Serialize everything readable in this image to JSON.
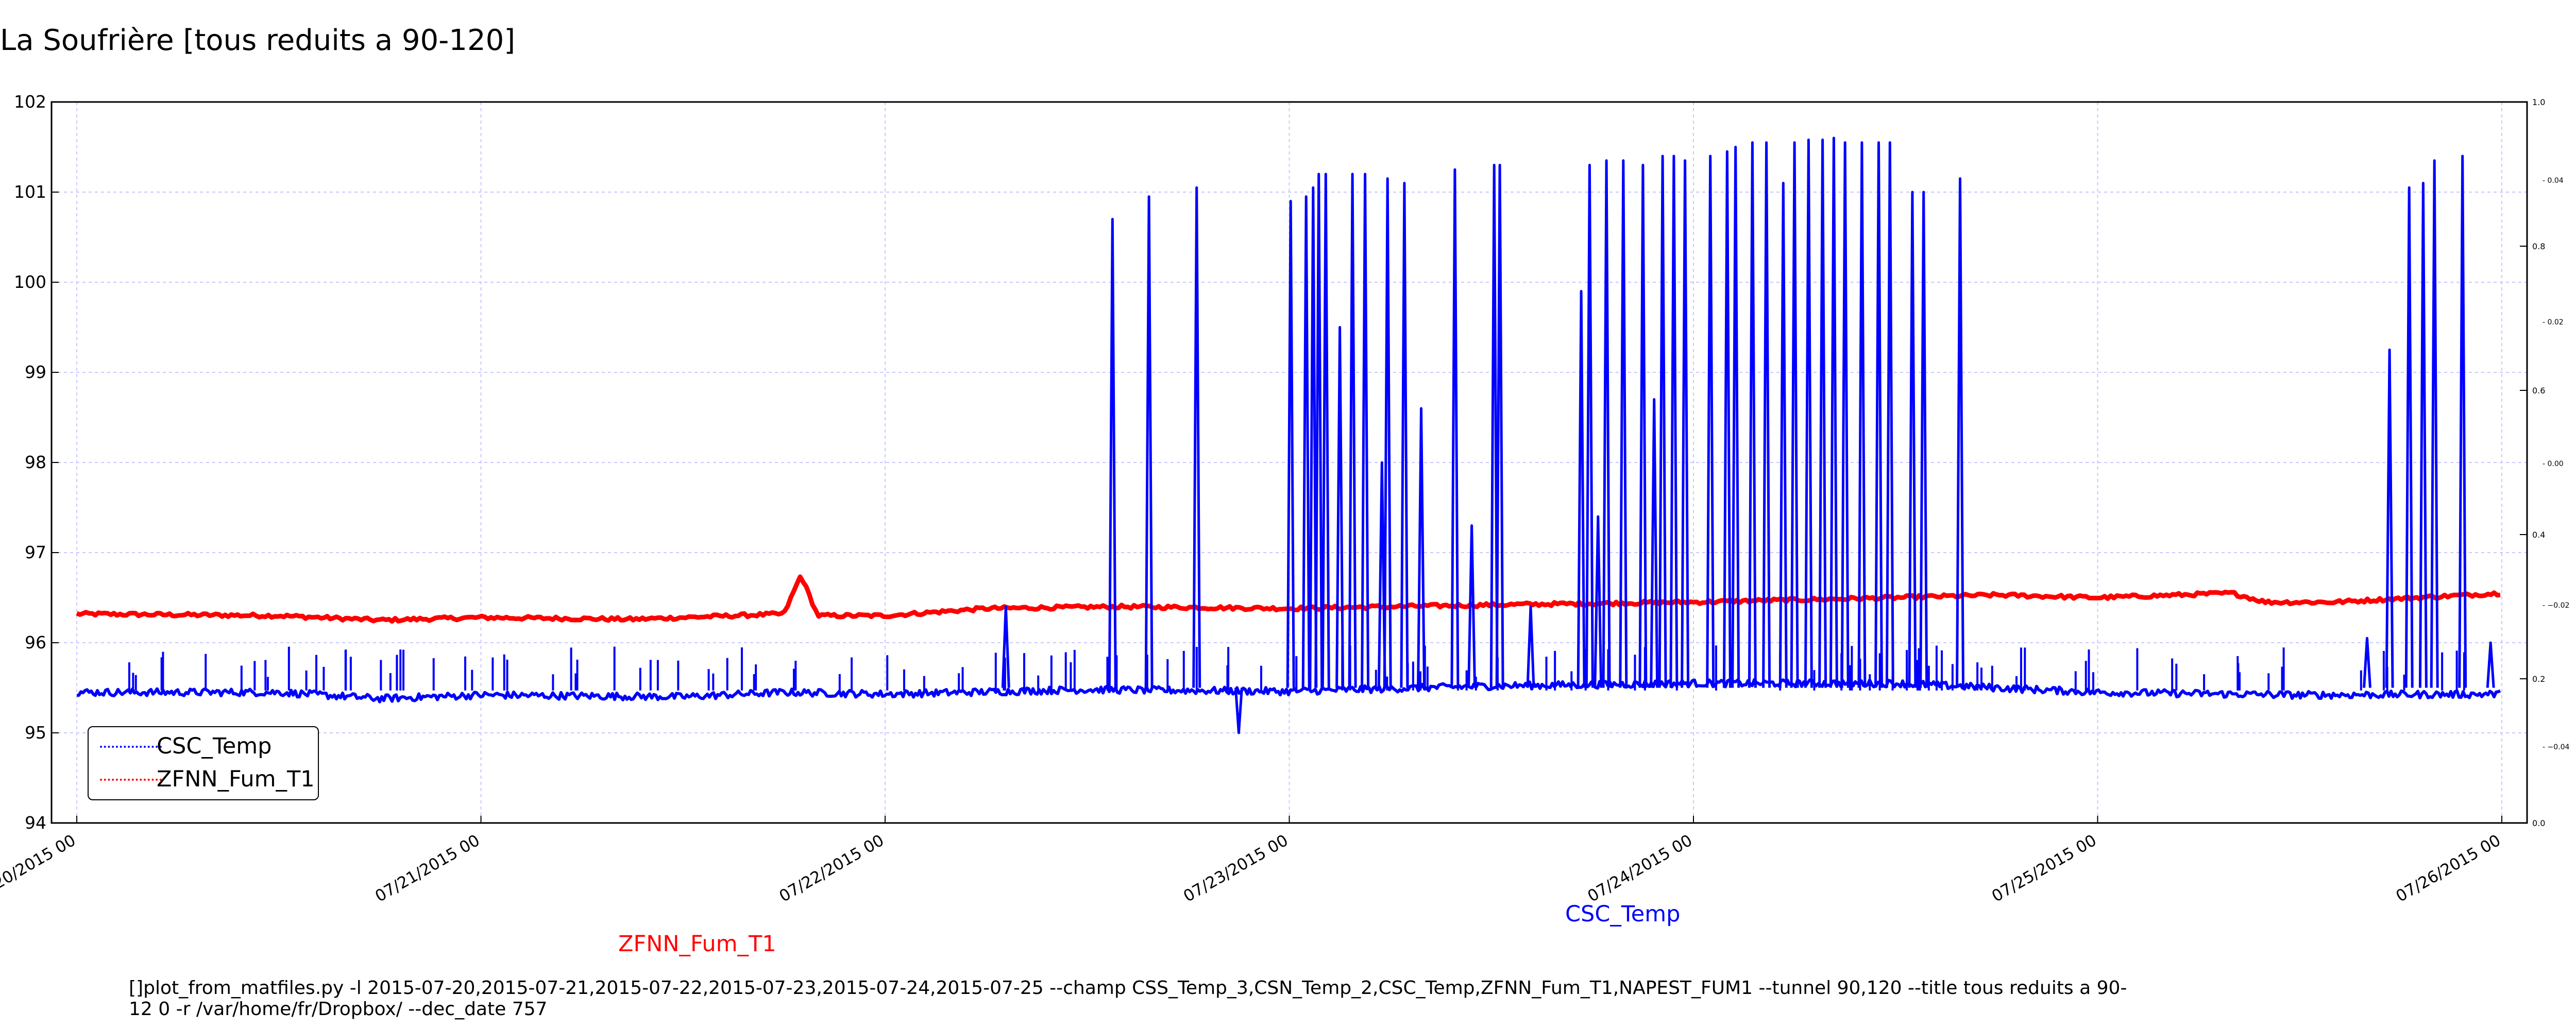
{
  "title": "La Soufrière [tous reduits a 90-120]",
  "colors": {
    "csc": "#0000ff",
    "zfnn": "#ff0000",
    "grid": "#c8c8ff",
    "frame": "#000000"
  },
  "labels": {
    "zfnn": "ZFNN_Fum_T1",
    "csc": "CSC_Temp"
  },
  "footer": "[]plot_from_matfiles.py -l 2015-07-20,2015-07-21,2015-07-22,2015-07-23,2015-07-24,2015-07-25 --champ CSS_Temp_3,CSN_Temp_2,CSC_Temp,ZFNN_Fum_T1,NAPEST_FUM1 --tunnel 90,120 --title tous reduits a 90-12 0 -r /var/home/fr/Dropbox/ --dec_date 757",
  "legend": [
    {
      "label": "CSC_Temp",
      "color": "#0000ff"
    },
    {
      "label": "ZFNN_Fum_T1",
      "color": "#ff0000"
    }
  ],
  "chart_data": {
    "type": "line",
    "title": "La Soufrière [tous reduits a 90-120]",
    "x_range": [
      "07/19/2015 22:30",
      "07/26/2015 01:30"
    ],
    "x_ticks": [
      "07/20/2015 00",
      "07/21/2015 00",
      "07/22/2015 00",
      "07/23/2015 00",
      "07/24/2015 00",
      "07/25/2015 00",
      "07/26/2015 00"
    ],
    "x_tick_labels": [
      "20/2015 00",
      "07/21/2015 00",
      "07/22/2015 00",
      "07/23/2015 00",
      "07/24/2015 00",
      "07/25/2015 00",
      "07/26/2015 00"
    ],
    "ylim": [
      94,
      102
    ],
    "y_ticks": [
      94,
      95,
      96,
      97,
      98,
      99,
      100,
      101,
      102
    ],
    "y_right_ticks": [
      "1.0",
      "0.8",
      "0.6",
      "0.4",
      "0.2",
      "0.0"
    ],
    "y_right_ticks_2": [
      "0.04",
      "0.02",
      "0.00",
      "−0.02",
      "−0.04"
    ],
    "grid": true,
    "legend_position": "lower-left",
    "series": [
      {
        "name": "CSC_Temp",
        "color": "#0000ff",
        "baseline": [
          [
            "07/20/2015 00:00",
            95.45
          ],
          [
            "07/20/2015 12:00",
            95.45
          ],
          [
            "07/20/2015 18:00",
            95.38
          ],
          [
            "07/21/2015 00:00",
            95.42
          ],
          [
            "07/21/2015 12:00",
            95.4
          ],
          [
            "07/21/2015 18:00",
            95.45
          ],
          [
            "07/22/2015 00:00",
            95.43
          ],
          [
            "07/22/2015 12:00",
            95.48
          ],
          [
            "07/23/2015 00:00",
            95.46
          ],
          [
            "07/23/2015 12:00",
            95.52
          ],
          [
            "07/24/2015 00:00",
            95.55
          ],
          [
            "07/24/2015 12:00",
            95.55
          ],
          [
            "07/25/2015 00:00",
            95.45
          ],
          [
            "07/25/2015 12:00",
            95.42
          ],
          [
            "07/26/2015 00:00",
            95.43
          ]
        ],
        "spikes": [
          [
            "07/22/2015 07:10",
            96.4
          ],
          [
            "07/22/2015 13:30",
            100.7
          ],
          [
            "07/22/2015 15:40",
            100.95
          ],
          [
            "07/22/2015 18:30",
            101.05
          ],
          [
            "07/22/2015 21:00",
            95.0
          ],
          [
            "07/23/2015 00:05",
            100.9
          ],
          [
            "07/23/2015 01:00",
            100.95
          ],
          [
            "07/23/2015 01:25",
            101.05
          ],
          [
            "07/23/2015 01:45",
            101.2
          ],
          [
            "07/23/2015 02:10",
            101.2
          ],
          [
            "07/23/2015 03:00",
            99.5
          ],
          [
            "07/23/2015 03:45",
            101.2
          ],
          [
            "07/23/2015 04:30",
            101.2
          ],
          [
            "07/23/2015 05:30",
            98.0
          ],
          [
            "07/23/2015 05:50",
            101.15
          ],
          [
            "07/23/2015 06:50",
            101.1
          ],
          [
            "07/23/2015 07:50",
            98.6
          ],
          [
            "07/23/2015 09:50",
            101.25
          ],
          [
            "07/23/2015 10:50",
            97.3
          ],
          [
            "07/23/2015 12:10",
            101.3
          ],
          [
            "07/23/2015 12:30",
            101.3
          ],
          [
            "07/23/2015 14:20",
            96.4
          ],
          [
            "07/23/2015 17:20",
            99.9
          ],
          [
            "07/23/2015 17:50",
            101.3
          ],
          [
            "07/23/2015 18:20",
            97.4
          ],
          [
            "07/23/2015 18:50",
            101.35
          ],
          [
            "07/23/2015 19:50",
            101.35
          ],
          [
            "07/23/2015 21:00",
            101.3
          ],
          [
            "07/23/2015 21:40",
            98.7
          ],
          [
            "07/23/2015 22:10",
            101.4
          ],
          [
            "07/23/2015 22:50",
            101.4
          ],
          [
            "07/23/2015 23:30",
            101.35
          ],
          [
            "07/24/2015 01:00",
            101.4
          ],
          [
            "07/24/2015 02:00",
            101.45
          ],
          [
            "07/24/2015 02:30",
            101.5
          ],
          [
            "07/24/2015 03:30",
            101.55
          ],
          [
            "07/24/2015 04:20",
            101.55
          ],
          [
            "07/24/2015 05:20",
            101.1
          ],
          [
            "07/24/2015 06:00",
            101.55
          ],
          [
            "07/24/2015 06:50",
            101.58
          ],
          [
            "07/24/2015 07:40",
            101.58
          ],
          [
            "07/24/2015 08:20",
            101.6
          ],
          [
            "07/24/2015 09:00",
            101.55
          ],
          [
            "07/24/2015 10:00",
            101.55
          ],
          [
            "07/24/2015 11:00",
            101.55
          ],
          [
            "07/24/2015 11:40",
            101.55
          ],
          [
            "07/24/2015 13:00",
            101.0
          ],
          [
            "07/24/2015 13:40",
            101.0
          ],
          [
            "07/24/2015 15:50",
            101.15
          ],
          [
            "07/25/2015 16:00",
            96.05
          ],
          [
            "07/25/2015 17:20",
            99.25
          ],
          [
            "07/25/2015 18:30",
            101.05
          ],
          [
            "07/25/2015 19:20",
            101.1
          ],
          [
            "07/25/2015 20:00",
            101.35
          ],
          [
            "07/25/2015 21:40",
            101.4
          ],
          [
            "07/25/2015 23:20",
            96.0
          ]
        ]
      },
      {
        "name": "ZFNN_Fum_T1",
        "color": "#ff0000",
        "baseline": [
          [
            "07/20/2015 00:00",
            96.32
          ],
          [
            "07/20/2015 12:00",
            96.3
          ],
          [
            "07/20/2015 18:00",
            96.25
          ],
          [
            "07/21/2015 00:00",
            96.28
          ],
          [
            "07/21/2015 09:00",
            96.26
          ],
          [
            "07/21/2015 18:00",
            96.32
          ],
          [
            "07/21/2015 19:00",
            96.75
          ],
          [
            "07/21/2015 20:00",
            96.3
          ],
          [
            "07/22/2015 00:00",
            96.3
          ],
          [
            "07/22/2015 06:00",
            96.38
          ],
          [
            "07/22/2015 14:00",
            96.4
          ],
          [
            "07/23/2015 00:00",
            96.38
          ],
          [
            "07/23/2015 12:00",
            96.42
          ],
          [
            "07/24/2015 00:00",
            96.45
          ],
          [
            "07/24/2015 12:00",
            96.5
          ],
          [
            "07/24/2015 18:00",
            96.53
          ],
          [
            "07/25/2015 00:00",
            96.5
          ],
          [
            "07/25/2015 08:00",
            96.55
          ],
          [
            "07/25/2015 10:00",
            96.45
          ],
          [
            "07/25/2015 14:00",
            96.45
          ],
          [
            "07/26/2015 00:00",
            96.55
          ]
        ]
      }
    ]
  }
}
